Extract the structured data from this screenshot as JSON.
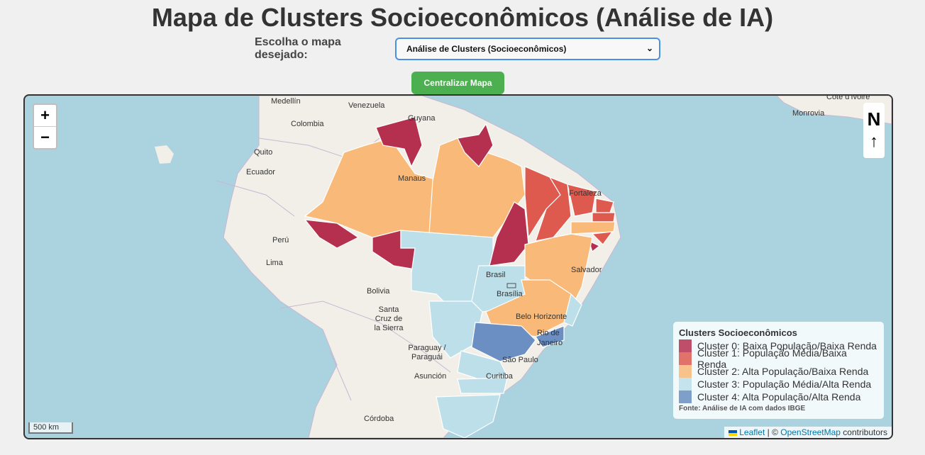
{
  "header": {
    "title": "Mapa de Clusters Socioeconômicos (Análise de IA)",
    "select_label": "Escolha o mapa desejado:",
    "select_value": "Análise de Clusters (Socioeconômicos)",
    "center_button": "Centralizar Mapa"
  },
  "map": {
    "zoom_in": "+",
    "zoom_out": "−",
    "north_label": "N",
    "north_arrow": "↑",
    "scale": "500 km",
    "place_labels": {
      "medellin": "Medellín",
      "venezuela": "Venezuela",
      "guyana": "Guyana",
      "colombia": "Colombia",
      "quito": "Quito",
      "ecuador": "Ecuador",
      "manaus": "Manaus",
      "fortaleza": "Fortaleza",
      "peru": "Perú",
      "lima": "Lima",
      "brasil": "Brasil",
      "brasilia": "Brasília",
      "salvador": "Salvador",
      "bolivia": "Bolivia",
      "santa_cruz": "Santa Cruz de la Sierra",
      "belo_horizonte": "Belo Horizonte",
      "rio": "Rio de Janeiro",
      "paraguay": "Paraguay / Paraguái",
      "asuncion": "Asunción",
      "sao_paulo": "São Paulo",
      "curitiba": "Curitiba",
      "cordoba": "Córdoba",
      "cote_ivoire": "Côte d'Ivoire",
      "monrovia": "Monrovia"
    },
    "cluster_colors": {
      "c0": "#b5304f",
      "c1": "#de5a4f",
      "c2": "#f9b978",
      "c3": "#bcdfe9",
      "c4": "#6b8fc2"
    },
    "states": [
      {
        "name": "Roraima",
        "cluster": 0
      },
      {
        "name": "Amapá",
        "cluster": 0
      },
      {
        "name": "Acre",
        "cluster": 0
      },
      {
        "name": "Rondônia",
        "cluster": 0
      },
      {
        "name": "Tocantins",
        "cluster": 0
      },
      {
        "name": "Sergipe",
        "cluster": 0
      },
      {
        "name": "Maranhão",
        "cluster": 1
      },
      {
        "name": "Piauí",
        "cluster": 1
      },
      {
        "name": "Ceará",
        "cluster": 1
      },
      {
        "name": "Rio Grande do Norte",
        "cluster": 1
      },
      {
        "name": "Paraíba",
        "cluster": 1
      },
      {
        "name": "Alagoas",
        "cluster": 1
      },
      {
        "name": "Amazonas",
        "cluster": 2
      },
      {
        "name": "Pará",
        "cluster": 2
      },
      {
        "name": "Bahia",
        "cluster": 2
      },
      {
        "name": "Minas Gerais",
        "cluster": 2
      },
      {
        "name": "Pernambuco",
        "cluster": 2
      },
      {
        "name": "Mato Grosso",
        "cluster": 3
      },
      {
        "name": "Goiás",
        "cluster": 3
      },
      {
        "name": "Mato Grosso do Sul",
        "cluster": 3
      },
      {
        "name": "Paraná",
        "cluster": 3
      },
      {
        "name": "Santa Catarina",
        "cluster": 3
      },
      {
        "name": "Rio Grande do Sul",
        "cluster": 3
      },
      {
        "name": "Espírito Santo",
        "cluster": 3
      },
      {
        "name": "Distrito Federal",
        "cluster": 3
      },
      {
        "name": "São Paulo",
        "cluster": 4
      },
      {
        "name": "Rio de Janeiro",
        "cluster": 4
      }
    ]
  },
  "legend": {
    "title": "Clusters Socioeconômicos",
    "items": [
      {
        "label": "Cluster 0: Baixa População/Baixa Renda",
        "color": "#b5304f"
      },
      {
        "label": "Cluster 1: População Média/Baixa Renda",
        "color": "#de5a4f"
      },
      {
        "label": "Cluster 2: Alta População/Baixa Renda",
        "color": "#f9b978"
      },
      {
        "label": "Cluster 3: População Média/Alta Renda",
        "color": "#bcdfe9"
      },
      {
        "label": "Cluster 4: Alta População/Alta Renda",
        "color": "#6b8fc2"
      }
    ],
    "source": "Fonte: Análise de IA com dados IBGE"
  },
  "attribution": {
    "leaflet": "Leaflet",
    "separator": " | © ",
    "osm": "OpenStreetMap",
    "suffix": " contributors"
  }
}
